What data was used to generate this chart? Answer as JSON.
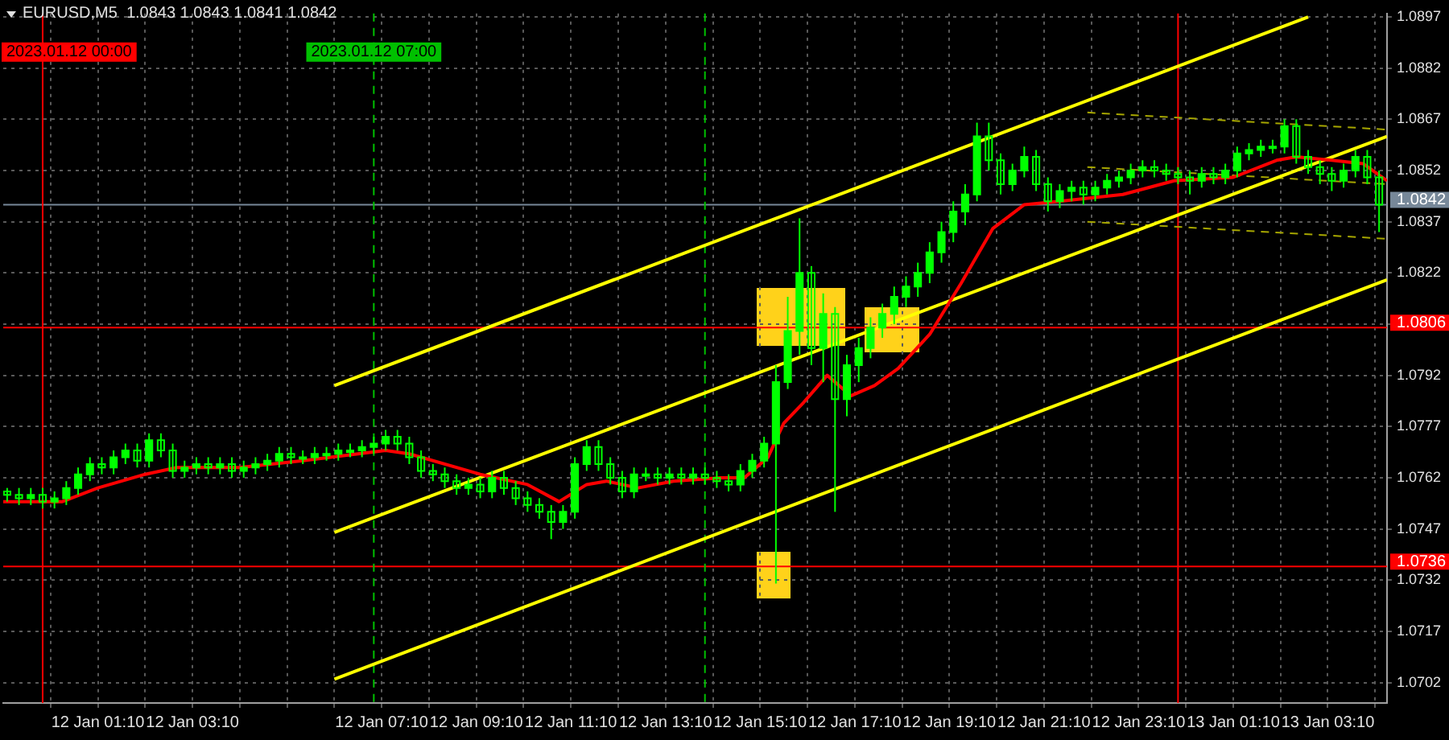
{
  "chart_data": {
    "type": "candlestick",
    "title": "EURUSD,M5  1.0843 1.0843 1.0841 1.0842",
    "color": "#00ff00",
    "x": [
      "2023-01-11T23:15",
      "2023-01-11T23:30",
      "2023-01-11T23:45",
      "2023-01-12T00:00",
      "2023-01-12T00:15",
      "2023-01-12T00:30",
      "2023-01-12T00:45",
      "2023-01-12T01:00",
      "2023-01-12T01:15",
      "2023-01-12T01:30",
      "2023-01-12T01:45",
      "2023-01-12T02:00",
      "2023-01-12T02:15",
      "2023-01-12T02:30",
      "2023-01-12T02:45",
      "2023-01-12T03:00",
      "2023-01-12T03:15",
      "2023-01-12T03:30",
      "2023-01-12T03:45",
      "2023-01-12T04:00",
      "2023-01-12T04:15",
      "2023-01-12T04:30",
      "2023-01-12T04:45",
      "2023-01-12T05:00",
      "2023-01-12T05:15",
      "2023-01-12T05:30",
      "2023-01-12T05:45",
      "2023-01-12T06:00",
      "2023-01-12T06:15",
      "2023-01-12T06:30",
      "2023-01-12T06:45",
      "2023-01-12T07:00",
      "2023-01-12T07:15",
      "2023-01-12T07:30",
      "2023-01-12T07:45",
      "2023-01-12T08:00",
      "2023-01-12T08:15",
      "2023-01-12T08:30",
      "2023-01-12T08:45",
      "2023-01-12T09:00",
      "2023-01-12T09:15",
      "2023-01-12T09:30",
      "2023-01-12T09:45",
      "2023-01-12T10:00",
      "2023-01-12T10:15",
      "2023-01-12T10:30",
      "2023-01-12T10:45",
      "2023-01-12T11:00",
      "2023-01-12T11:15",
      "2023-01-12T11:30",
      "2023-01-12T11:45",
      "2023-01-12T12:00",
      "2023-01-12T12:15",
      "2023-01-12T12:30",
      "2023-01-12T12:45",
      "2023-01-12T13:00",
      "2023-01-12T13:15",
      "2023-01-12T13:30",
      "2023-01-12T13:45",
      "2023-01-12T14:00",
      "2023-01-12T14:15",
      "2023-01-12T14:30",
      "2023-01-12T14:45",
      "2023-01-12T15:00",
      "2023-01-12T15:15",
      "2023-01-12T15:30",
      "2023-01-12T15:45",
      "2023-01-12T16:00",
      "2023-01-12T16:15",
      "2023-01-12T16:30",
      "2023-01-12T16:45",
      "2023-01-12T17:00",
      "2023-01-12T17:15",
      "2023-01-12T17:30",
      "2023-01-12T17:45",
      "2023-01-12T18:00",
      "2023-01-12T18:15",
      "2023-01-12T18:30",
      "2023-01-12T18:45",
      "2023-01-12T19:00",
      "2023-01-12T19:15",
      "2023-01-12T19:30",
      "2023-01-12T19:45",
      "2023-01-12T20:00",
      "2023-01-12T20:15",
      "2023-01-12T20:30",
      "2023-01-12T20:45",
      "2023-01-12T21:00",
      "2023-01-12T21:15",
      "2023-01-12T21:30",
      "2023-01-12T21:45",
      "2023-01-12T22:00",
      "2023-01-12T22:15",
      "2023-01-12T22:30",
      "2023-01-12T22:45",
      "2023-01-12T23:00",
      "2023-01-12T23:15",
      "2023-01-12T23:30",
      "2023-01-12T23:45",
      "2023-01-13T00:00",
      "2023-01-13T00:15",
      "2023-01-13T00:30",
      "2023-01-13T00:45",
      "2023-01-13T01:00",
      "2023-01-13T01:15",
      "2023-01-13T01:30",
      "2023-01-13T01:45",
      "2023-01-13T02:00",
      "2023-01-13T02:15",
      "2023-01-13T02:30",
      "2023-01-13T02:45",
      "2023-01-13T03:00",
      "2023-01-13T03:15",
      "2023-01-13T03:30",
      "2023-01-13T03:45",
      "2023-01-13T04:00",
      "2023-01-13T04:15"
    ],
    "ohlc": [
      [
        1.0758,
        1.0759,
        1.0755,
        1.0757
      ],
      [
        1.0757,
        1.0759,
        1.0754,
        1.0756
      ],
      [
        1.0756,
        1.0759,
        1.0754,
        1.0757
      ],
      [
        1.0757,
        1.0759,
        1.0753,
        1.0755
      ],
      [
        1.0755,
        1.0758,
        1.0753,
        1.0756
      ],
      [
        1.0756,
        1.0761,
        1.0754,
        1.0759
      ],
      [
        1.0759,
        1.0765,
        1.0757,
        1.0763
      ],
      [
        1.0763,
        1.0768,
        1.0761,
        1.0766
      ],
      [
        1.0766,
        1.0768,
        1.0763,
        1.0765
      ],
      [
        1.0765,
        1.077,
        1.0763,
        1.0768
      ],
      [
        1.0768,
        1.0772,
        1.0766,
        1.077
      ],
      [
        1.077,
        1.0772,
        1.0765,
        1.0767
      ],
      [
        1.0767,
        1.0775,
        1.0765,
        1.0773
      ],
      [
        1.0773,
        1.0775,
        1.0768,
        1.077
      ],
      [
        1.077,
        1.0772,
        1.0762,
        1.0764
      ],
      [
        1.0764,
        1.0767,
        1.0762,
        1.0765
      ],
      [
        1.0765,
        1.0768,
        1.0763,
        1.0766
      ],
      [
        1.0766,
        1.0768,
        1.0763,
        1.0765
      ],
      [
        1.0765,
        1.0768,
        1.0763,
        1.0766
      ],
      [
        1.0766,
        1.0768,
        1.0762,
        1.0764
      ],
      [
        1.0764,
        1.0767,
        1.0762,
        1.0765
      ],
      [
        1.0765,
        1.0768,
        1.0763,
        1.0766
      ],
      [
        1.0766,
        1.0769,
        1.0764,
        1.0767
      ],
      [
        1.0767,
        1.0771,
        1.0765,
        1.0769
      ],
      [
        1.0769,
        1.0771,
        1.0766,
        1.0768
      ],
      [
        1.0768,
        1.077,
        1.0766,
        1.0768
      ],
      [
        1.0768,
        1.0771,
        1.0766,
        1.0769
      ],
      [
        1.0769,
        1.0771,
        1.0767,
        1.0769
      ],
      [
        1.0769,
        1.0772,
        1.0767,
        1.077
      ],
      [
        1.077,
        1.0772,
        1.0768,
        1.077
      ],
      [
        1.077,
        1.0773,
        1.0768,
        1.0771
      ],
      [
        1.0771,
        1.0774,
        1.0769,
        1.0772
      ],
      [
        1.0772,
        1.0776,
        1.077,
        1.0774
      ],
      [
        1.0774,
        1.0776,
        1.077,
        1.0772
      ],
      [
        1.0772,
        1.0774,
        1.0766,
        1.0768
      ],
      [
        1.0768,
        1.077,
        1.0762,
        1.0764
      ],
      [
        1.0764,
        1.0766,
        1.0761,
        1.0763
      ],
      [
        1.0763,
        1.0765,
        1.0759,
        1.0761
      ],
      [
        1.0761,
        1.0763,
        1.0757,
        1.0759
      ],
      [
        1.0759,
        1.0762,
        1.0757,
        1.076
      ],
      [
        1.076,
        1.0762,
        1.0756,
        1.0758
      ],
      [
        1.0758,
        1.0764,
        1.0756,
        1.0762
      ],
      [
        1.0762,
        1.0764,
        1.0757,
        1.0759
      ],
      [
        1.0759,
        1.0761,
        1.0754,
        1.0756
      ],
      [
        1.0756,
        1.0758,
        1.0752,
        1.0754
      ],
      [
        1.0754,
        1.0756,
        1.075,
        1.0752
      ],
      [
        1.0752,
        1.0754,
        1.0744,
        1.0749
      ],
      [
        1.0749,
        1.0754,
        1.0747,
        1.0752
      ],
      [
        1.0752,
        1.0768,
        1.075,
        1.0766
      ],
      [
        1.0766,
        1.0773,
        1.0764,
        1.0771
      ],
      [
        1.0771,
        1.0773,
        1.0764,
        1.0766
      ],
      [
        1.0766,
        1.0768,
        1.076,
        1.0762
      ],
      [
        1.0762,
        1.0764,
        1.0756,
        1.0758
      ],
      [
        1.0758,
        1.0765,
        1.0756,
        1.0763
      ],
      [
        1.0763,
        1.0765,
        1.0761,
        1.0763
      ],
      [
        1.0763,
        1.0765,
        1.076,
        1.0762
      ],
      [
        1.0762,
        1.0765,
        1.076,
        1.0763
      ],
      [
        1.0763,
        1.0765,
        1.076,
        1.0762
      ],
      [
        1.0762,
        1.0765,
        1.076,
        1.0763
      ],
      [
        1.0763,
        1.0765,
        1.076,
        1.0762
      ],
      [
        1.0762,
        1.0764,
        1.0759,
        1.0761
      ],
      [
        1.0761,
        1.0763,
        1.0758,
        1.076
      ],
      [
        1.076,
        1.0766,
        1.0758,
        1.0764
      ],
      [
        1.0764,
        1.0769,
        1.0762,
        1.0767
      ],
      [
        1.0767,
        1.0774,
        1.0765,
        1.0772
      ],
      [
        1.0772,
        1.0795,
        1.0731,
        1.079
      ],
      [
        1.079,
        1.0815,
        1.0788,
        1.0805
      ],
      [
        1.0805,
        1.0838,
        1.0798,
        1.0822
      ],
      [
        1.0822,
        1.0824,
        1.0795,
        1.08
      ],
      [
        1.08,
        1.0816,
        1.079,
        1.081
      ],
      [
        1.081,
        1.0812,
        1.0752,
        1.0785
      ],
      [
        1.0785,
        1.0798,
        1.078,
        1.0795
      ],
      [
        1.0795,
        1.0803,
        1.079,
        1.08
      ],
      [
        1.08,
        1.0809,
        1.0797,
        1.0806
      ],
      [
        1.0806,
        1.0813,
        1.0803,
        1.081
      ],
      [
        1.081,
        1.0818,
        1.0807,
        1.0815
      ],
      [
        1.0815,
        1.0821,
        1.0812,
        1.0818
      ],
      [
        1.0818,
        1.0825,
        1.0815,
        1.0822
      ],
      [
        1.0822,
        1.0831,
        1.0819,
        1.0828
      ],
      [
        1.0828,
        1.0837,
        1.0825,
        1.0834
      ],
      [
        1.0834,
        1.0843,
        1.0831,
        1.084
      ],
      [
        1.084,
        1.0848,
        1.0836,
        1.0845
      ],
      [
        1.0845,
        1.0866,
        1.0843,
        1.0862
      ],
      [
        1.0862,
        1.0866,
        1.0852,
        1.0855
      ],
      [
        1.0855,
        1.0857,
        1.0845,
        1.0848
      ],
      [
        1.0848,
        1.0854,
        1.0846,
        1.0852
      ],
      [
        1.0852,
        1.0859,
        1.085,
        1.0856
      ],
      [
        1.0856,
        1.0858,
        1.0846,
        1.0848
      ],
      [
        1.0848,
        1.085,
        1.084,
        1.0843
      ],
      [
        1.0843,
        1.0848,
        1.0841,
        1.0846
      ],
      [
        1.0846,
        1.0849,
        1.0843,
        1.0847
      ],
      [
        1.0847,
        1.0849,
        1.0842,
        1.0845
      ],
      [
        1.0845,
        1.0849,
        1.0843,
        1.0847
      ],
      [
        1.0847,
        1.0851,
        1.0845,
        1.0849
      ],
      [
        1.0849,
        1.0852,
        1.0847,
        1.085
      ],
      [
        1.085,
        1.0854,
        1.0848,
        1.0852
      ],
      [
        1.0852,
        1.0855,
        1.085,
        1.0853
      ],
      [
        1.0853,
        1.0855,
        1.085,
        1.0852
      ],
      [
        1.0852,
        1.0854,
        1.0849,
        1.0851
      ],
      [
        1.0851,
        1.0853,
        1.0848,
        1.085
      ],
      [
        1.085,
        1.0852,
        1.0845,
        1.0849
      ],
      [
        1.0849,
        1.0853,
        1.0847,
        1.0851
      ],
      [
        1.0851,
        1.0853,
        1.0848,
        1.085
      ],
      [
        1.085,
        1.0854,
        1.0848,
        1.0852
      ],
      [
        1.0852,
        1.0859,
        1.085,
        1.0857
      ],
      [
        1.0857,
        1.086,
        1.0855,
        1.0858
      ],
      [
        1.0858,
        1.0861,
        1.0856,
        1.0859
      ],
      [
        1.0859,
        1.0861,
        1.0857,
        1.0859
      ],
      [
        1.0859,
        1.0867,
        1.0857,
        1.0865
      ],
      [
        1.0865,
        1.0867,
        1.0854,
        1.0856
      ],
      [
        1.0856,
        1.0858,
        1.0851,
        1.0853
      ],
      [
        1.0853,
        1.0855,
        1.0848,
        1.0851
      ],
      [
        1.0851,
        1.0853,
        1.0846,
        1.0849
      ],
      [
        1.0849,
        1.0854,
        1.0847,
        1.0852
      ],
      [
        1.0852,
        1.0858,
        1.085,
        1.0856
      ],
      [
        1.0856,
        1.0858,
        1.0848,
        1.085
      ],
      [
        1.085,
        1.0852,
        1.0834,
        1.0842
      ]
    ],
    "series": [
      {
        "type": "line",
        "color": "#ff0000",
        "x": [
          "2023-01-11T23:10",
          "2023-01-12T00:25",
          "2023-01-12T01:10",
          "2023-01-12T02:10",
          "2023-01-12T02:50",
          "2023-01-12T04:10",
          "2023-01-12T05:30",
          "2023-01-12T07:15",
          "2023-01-12T07:45",
          "2023-01-12T09:15",
          "2023-01-12T10:15",
          "2023-01-12T10:55",
          "2023-01-12T11:30",
          "2023-01-12T11:55",
          "2023-01-12T12:35",
          "2023-01-12T13:20",
          "2023-01-12T14:20",
          "2023-01-12T14:50",
          "2023-01-12T15:20",
          "2023-01-12T15:40",
          "2023-01-12T16:05",
          "2023-01-12T16:35",
          "2023-01-12T17:05",
          "2023-01-12T17:35",
          "2023-01-12T18:05",
          "2023-01-12T18:45",
          "2023-01-12T19:25",
          "2023-01-12T20:05",
          "2023-01-12T20:45",
          "2023-01-12T21:30",
          "2023-01-12T22:50",
          "2023-01-12T23:55",
          "2023-01-13T01:10",
          "2023-01-13T02:05",
          "2023-01-13T02:30",
          "2023-01-13T03:15",
          "2023-01-13T03:55",
          "2023-01-13T04:25"
        ],
        "values": [
          1.0755,
          1.0755,
          1.0759,
          1.0763,
          1.0765,
          1.0765,
          1.0767,
          1.077,
          1.0769,
          1.0763,
          1.076,
          1.0755,
          1.076,
          1.0761,
          1.0759,
          1.0761,
          1.0762,
          1.0762,
          1.0768,
          1.0778,
          1.0784,
          1.0792,
          1.0786,
          1.0789,
          1.0794,
          1.0804,
          1.0819,
          1.0835,
          1.0842,
          1.0843,
          1.0845,
          1.0849,
          1.085,
          1.0855,
          1.0856,
          1.0855,
          1.0854,
          1.0849
        ]
      },
      {
        "type": "line",
        "color": "#ffff00",
        "x": [
          "2023-01-12T06:10",
          "2023-01-13T02:45"
        ],
        "values": [
          1.0789,
          1.0897
        ]
      },
      {
        "type": "line",
        "color": "#ffff00",
        "x": [
          "2023-01-12T06:10",
          "2023-01-13T04:25"
        ],
        "values": [
          1.0746,
          1.0862
        ]
      },
      {
        "type": "line",
        "color": "#ffff00",
        "x": [
          "2023-01-12T06:10",
          "2023-01-13T04:25"
        ],
        "values": [
          1.0703,
          1.082
        ]
      },
      {
        "type": "line",
        "color": "#a6a600",
        "line_style": "dashed",
        "x": [
          "2023-01-12T22:05",
          "2023-01-13T04:25"
        ],
        "values": [
          1.0869,
          1.0864
        ]
      },
      {
        "type": "line",
        "color": "#a6a600",
        "line_style": "dashed",
        "x": [
          "2023-01-12T22:05",
          "2023-01-13T04:25"
        ],
        "values": [
          1.0853,
          1.0848
        ]
      },
      {
        "type": "line",
        "color": "#a6a600",
        "line_style": "dashed",
        "x": [
          "2023-01-12T22:05",
          "2023-01-13T04:25"
        ],
        "values": [
          1.0837,
          1.0832
        ]
      }
    ],
    "xlim": [
      "2023-01-11T23:10",
      "2023-01-13T04:25"
    ],
    "xticks": [
      {
        "value": "2023-01-12T00:10",
        "label": null
      },
      {
        "value": "2023-01-12T01:10",
        "label": "12 Jan 01:10"
      },
      {
        "value": "2023-01-12T02:10",
        "label": null
      },
      {
        "value": "2023-01-12T03:10",
        "label": "12 Jan 03:10"
      },
      {
        "value": "2023-01-12T04:10",
        "label": null
      },
      {
        "value": "2023-01-12T05:10",
        "label": null
      },
      {
        "value": "2023-01-12T06:10",
        "label": null
      },
      {
        "value": "2023-01-12T07:10",
        "label": "12 Jan 07:10"
      },
      {
        "value": "2023-01-12T08:10",
        "label": null
      },
      {
        "value": "2023-01-12T09:10",
        "label": "12 Jan 09:10"
      },
      {
        "value": "2023-01-12T10:10",
        "label": null
      },
      {
        "value": "2023-01-12T11:10",
        "label": "12 Jan 11:10"
      },
      {
        "value": "2023-01-12T12:10",
        "label": null
      },
      {
        "value": "2023-01-12T13:10",
        "label": "12 Jan 13:10"
      },
      {
        "value": "2023-01-12T14:10",
        "label": null
      },
      {
        "value": "2023-01-12T15:10",
        "label": "12 Jan 15:10"
      },
      {
        "value": "2023-01-12T16:10",
        "label": null
      },
      {
        "value": "2023-01-12T17:10",
        "label": "12 Jan 17:10"
      },
      {
        "value": "2023-01-12T18:10",
        "label": null
      },
      {
        "value": "2023-01-12T19:10",
        "label": "12 Jan 19:10"
      },
      {
        "value": "2023-01-12T20:10",
        "label": null
      },
      {
        "value": "2023-01-12T21:10",
        "label": "12 Jan 21:10"
      },
      {
        "value": "2023-01-12T22:10",
        "label": null
      },
      {
        "value": "2023-01-12T23:10",
        "label": "12 Jan 23:10"
      },
      {
        "value": "2023-01-13T00:10",
        "label": null
      },
      {
        "value": "2023-01-13T01:10",
        "label": "13 Jan 01:10"
      },
      {
        "value": "2023-01-13T02:10",
        "label": null
      },
      {
        "value": "2023-01-13T03:10",
        "label": "13 Jan 03:10"
      },
      {
        "value": "2023-01-13T04:10",
        "label": null
      }
    ],
    "ylim": [
      1.0696,
      1.0898
    ],
    "yticks": [
      1.0702,
      1.0717,
      1.0732,
      1.0747,
      1.0762,
      1.0777,
      1.0792,
      {
        "value": 1.0807,
        "label": null
      },
      1.0822,
      1.0837,
      1.0852,
      1.0867,
      1.0882,
      1.0897
    ],
    "grid": true,
    "ref_lines": [
      {
        "axis": "y",
        "value": 1.0806,
        "label": "1.0806",
        "color": "#ff0000"
      },
      {
        "axis": "y",
        "value": 1.0736,
        "label": "1.0736",
        "color": "#ff0000"
      },
      {
        "axis": "y",
        "value": 1.0842,
        "label": "1.0842",
        "color": "#778899"
      },
      {
        "axis": "x",
        "value": "2023-01-12T00:00",
        "label": "2023.01.12 00:00",
        "color": "#ff0000"
      },
      {
        "axis": "x",
        "value": "2023-01-13T00:00",
        "label": null,
        "color": "#ff0000"
      },
      {
        "axis": "x",
        "value": "2023-01-12T07:00",
        "label": "2023.01.12 07:00",
        "color": "#00c000",
        "line_style": "dashed"
      },
      {
        "axis": "x",
        "value": "2023-01-12T14:00",
        "label": null,
        "color": "#00c000",
        "line_style": "dashed"
      }
    ]
  }
}
